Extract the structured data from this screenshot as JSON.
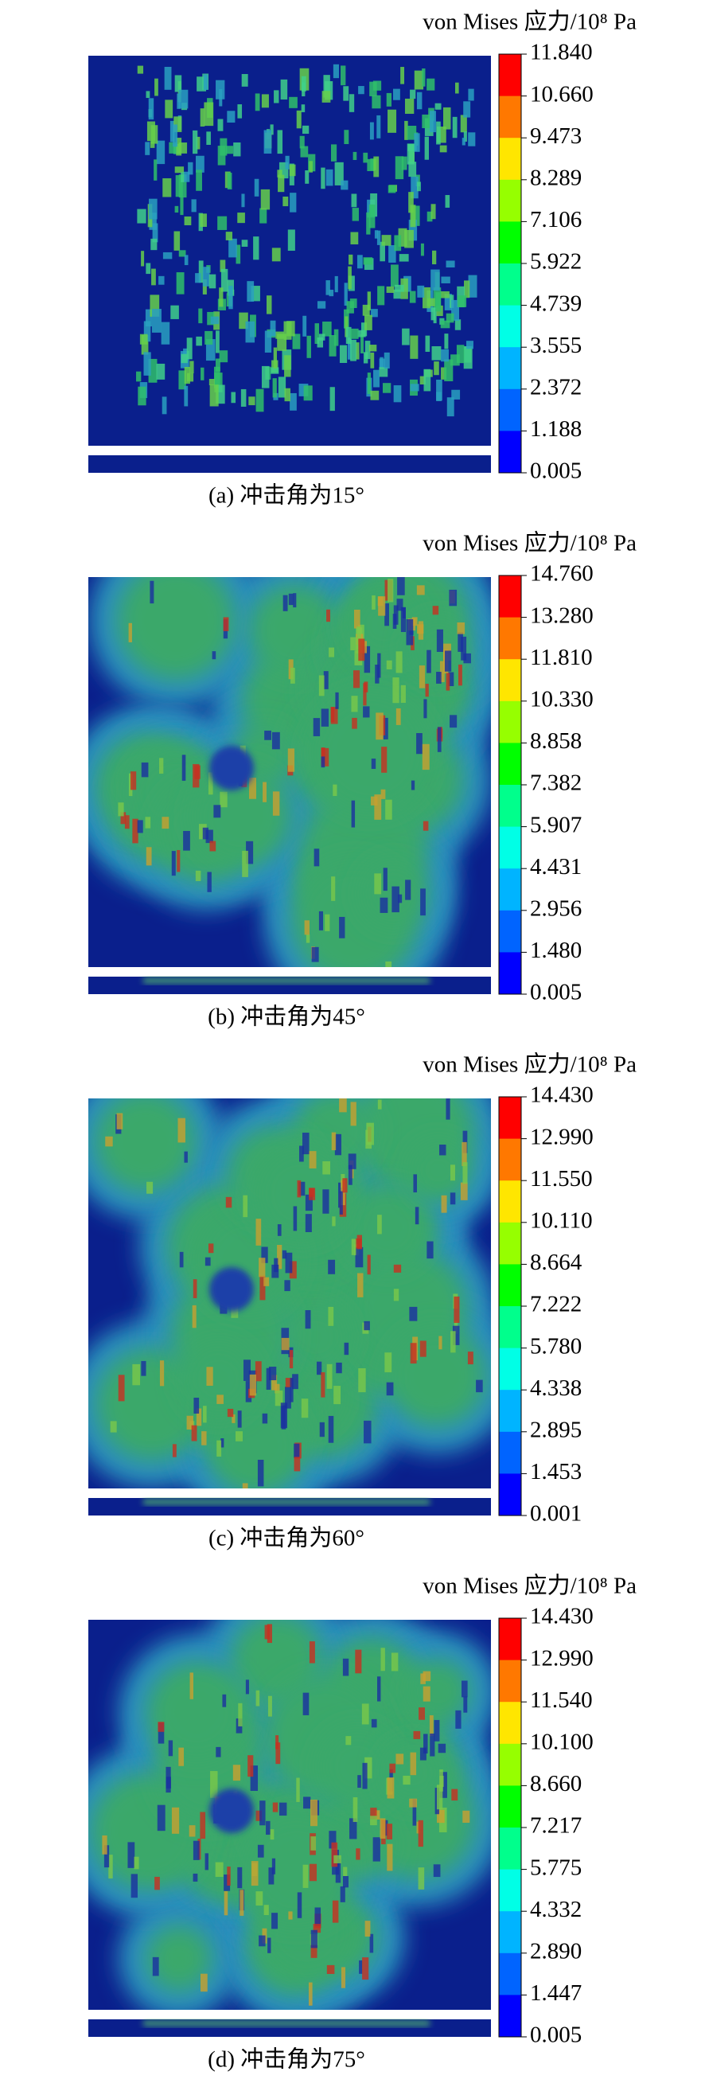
{
  "panels": [
    {
      "legend_title": "von Mises 应力/10⁸ Pa",
      "ticks": [
        "11.840",
        "10.660",
        "9.473",
        "8.289",
        "7.106",
        "5.922",
        "4.739",
        "3.555",
        "2.372",
        "1.188",
        "0.005"
      ],
      "caption": "(a) 冲击角为15°"
    },
    {
      "legend_title": "von Mises 应力/10⁸ Pa",
      "ticks": [
        "14.760",
        "13.280",
        "11.810",
        "10.330",
        "8.858",
        "7.382",
        "5.907",
        "4.431",
        "2.956",
        "1.480",
        "0.005"
      ],
      "caption": "(b) 冲击角为45°"
    },
    {
      "legend_title": "von Mises 应力/10⁸ Pa",
      "ticks": [
        "14.430",
        "12.990",
        "11.550",
        "10.110",
        "8.664",
        "7.222",
        "5.780",
        "4.338",
        "2.895",
        "1.453",
        "0.001"
      ],
      "caption": "(c) 冲击角为60°"
    },
    {
      "legend_title": "von Mises 应力/10⁸ Pa",
      "ticks": [
        "14.430",
        "12.990",
        "11.540",
        "10.100",
        "8.660",
        "7.217",
        "5.775",
        "4.332",
        "2.890",
        "1.447",
        "0.005"
      ],
      "caption": "(d) 冲击角为75°"
    }
  ]
}
